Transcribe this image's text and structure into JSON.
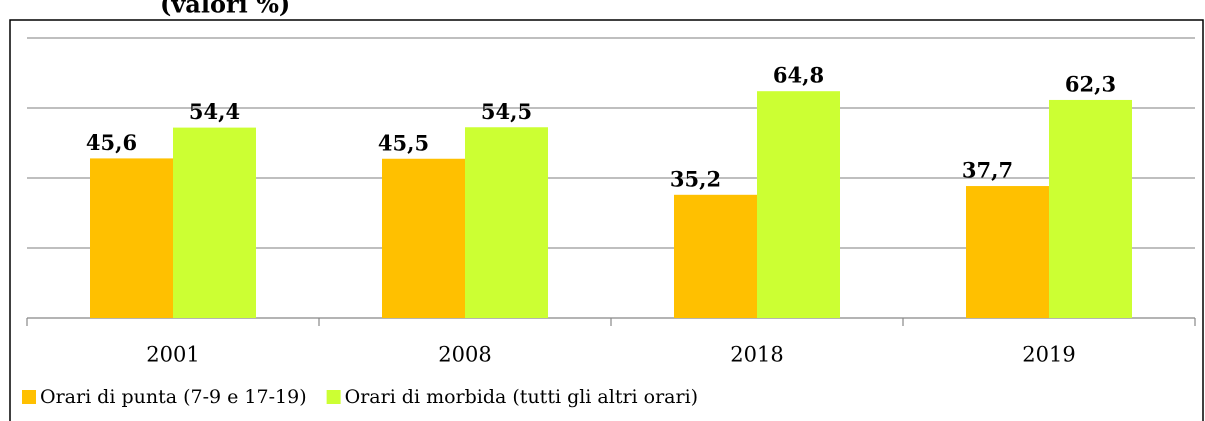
{
  "chart_data": {
    "type": "bar",
    "title": "(valori %)",
    "categories": [
      "2001",
      "2008",
      "2018",
      "2019"
    ],
    "series": [
      {
        "name": "Orari di punta (7-9 e 17-19)",
        "color": "#ffc000",
        "values": [
          45.6,
          45.5,
          35.2,
          37.7
        ],
        "value_labels": [
          "45,6",
          "45,5",
          "35,2",
          "37,7"
        ]
      },
      {
        "name": "Orari di morbida (tutti gli altri orari)",
        "color": "#ccff33",
        "values": [
          54.4,
          54.5,
          64.8,
          62.3
        ],
        "value_labels": [
          "54,4",
          "54,5",
          "64,8",
          "62,3"
        ]
      }
    ],
    "ylim": [
      0,
      80
    ],
    "yticks": [
      0,
      20,
      40,
      60,
      80
    ],
    "grid": true,
    "legend": "bottom"
  }
}
